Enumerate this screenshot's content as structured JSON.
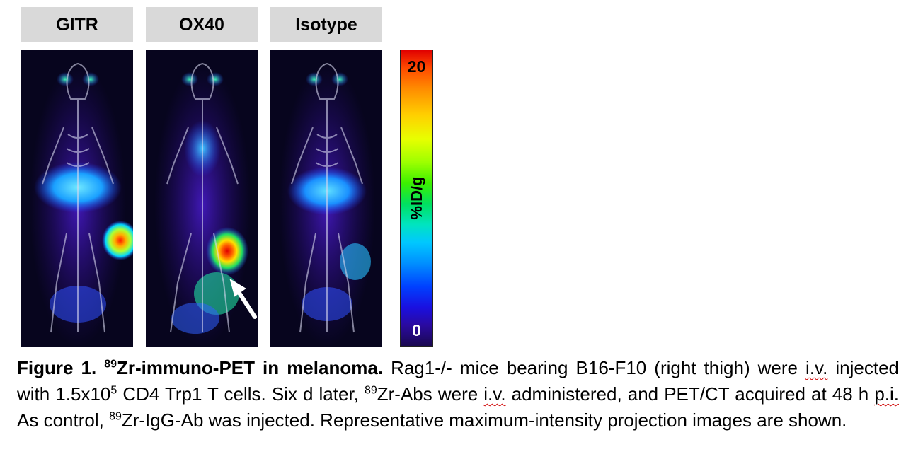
{
  "panels": [
    {
      "label": "GITR"
    },
    {
      "label": "OX40"
    },
    {
      "label": "Isotype"
    }
  ],
  "colorbar": {
    "max": "20",
    "min": "0",
    "unit": "%ID/g"
  },
  "caption": {
    "figure_label": "Figure 1.",
    "title_sup": "89",
    "title_rest": "Zr-immuno-PET in melanoma.",
    "t1": " Rag1-/- mice bearing B16-F10 (right thigh) were ",
    "iv1": "i.v.",
    "t2": " injected with 1.5x10",
    "exp": "5",
    "t3": " CD4 Trp1 T cells. Six d later, ",
    "sup2": "89",
    "t4": "Zr-Abs were ",
    "iv2": "i.v.",
    "t5": " administered, and PET/CT acquired at 48 h ",
    "pi": "p.i.",
    "t6": " As control, ",
    "sup3": "89",
    "t7": "Zr-IgG-Ab was injected. Representative maximum-intensity projection images are shown."
  },
  "colors": {
    "label_bg": "#d9d9d9",
    "panel_bg": "#07051e",
    "spellcheck_underline": "#d00000"
  }
}
